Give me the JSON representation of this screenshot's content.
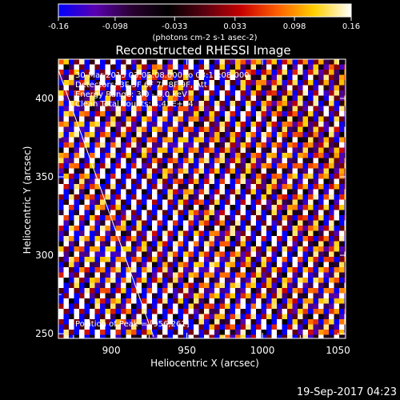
{
  "chart_data": {
    "type": "heatmap",
    "title": "Reconstructed RHESSI Image",
    "info_lines": [
      "30-Mar-2015 03:05:08.000 to 03:15:08.000",
      "Detectors: 3F 5F 6F 7F 8F 9F, Att 0",
      "Energy Range: 3.0 - 6.0 keV",
      "Clean    Total counts: 4.43E+04"
    ],
    "peak_label": "Position of Peak = [956,261]",
    "xlabel": "Heliocentric X (arcsec)",
    "ylabel": "Heliocentric Y (arcsec)",
    "xlim": [
      865,
      1055
    ],
    "ylim": [
      247,
      425
    ],
    "xticks": [
      900,
      950,
      1000,
      1050
    ],
    "yticks": [
      250,
      300,
      350,
      400
    ],
    "colorbar": {
      "min": -0.16,
      "max": 0.16,
      "ticks": [
        "-0.16",
        "-0.098",
        "-0.033",
        "0.033",
        "0.098",
        "0.16"
      ],
      "label": "(photons cm-2 s-1 asec-2)",
      "colormap": [
        "#0000ff",
        "#5a00b0",
        "#2a0030",
        "#000000",
        "#5a0010",
        "#c80000",
        "#ff6000",
        "#ffd000",
        "#ffffff"
      ]
    },
    "limb_line": {
      "x": [
        865,
        928
      ],
      "y": [
        418,
        248
      ]
    },
    "stripes": {
      "period_px": 20,
      "orientation": "diagonal, lower-left to upper-right"
    }
  },
  "footer": {
    "timestamp": "19-Sep-2017 04:23"
  }
}
